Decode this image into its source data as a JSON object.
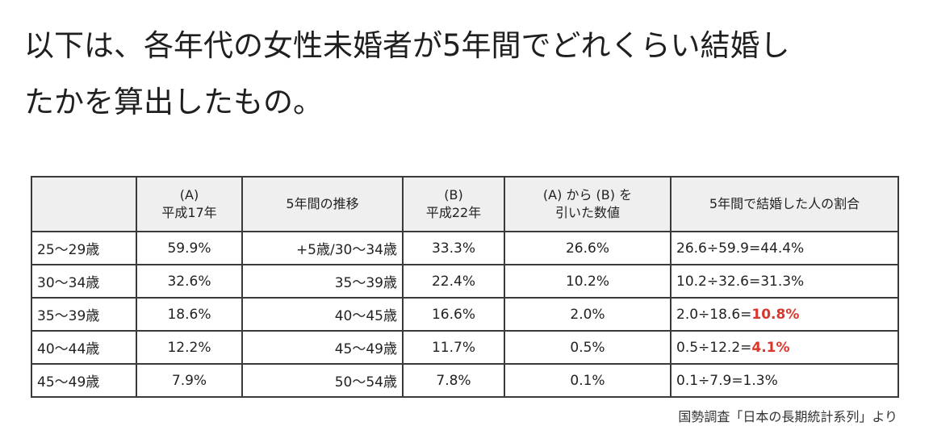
{
  "intro": {
    "line1": "以下は、各年代の女性未婚者が5年間でどれくらい結婚し",
    "line2": "たかを算出したもの。"
  },
  "table": {
    "headers": {
      "age": "",
      "a_line1": "(A)",
      "a_line2": "平成17年",
      "transition": "5年間の推移",
      "b_line1": "(B)",
      "b_line2": "平成22年",
      "diff_line1": "(A) から (B) を",
      "diff_line2": "引いた数値",
      "rate": "5年間で結婚した人の割合"
    },
    "rows": [
      {
        "age": "25〜29歳",
        "a": "59.9%",
        "transition": "+5歳/30〜34歳",
        "b": "33.3%",
        "diff": "26.6%",
        "rate_prefix": "26.6÷59.9=44.4%",
        "rate_highlight": ""
      },
      {
        "age": "30〜34歳",
        "a": "32.6%",
        "transition": "35〜39歳",
        "b": "22.4%",
        "diff": "10.2%",
        "rate_prefix": "10.2÷32.6=31.3%",
        "rate_highlight": ""
      },
      {
        "age": "35〜39歳",
        "a": "18.6%",
        "transition": "40〜45歳",
        "b": "16.6%",
        "diff": "2.0%",
        "rate_prefix": "2.0÷18.6=",
        "rate_highlight": "10.8%"
      },
      {
        "age": "40〜44歳",
        "a": "12.2%",
        "transition": "45〜49歳",
        "b": "11.7%",
        "diff": "0.5%",
        "rate_prefix": "0.5÷12.2=",
        "rate_highlight": "4.1%"
      },
      {
        "age": "45〜49歳",
        "a": "7.9%",
        "transition": "50〜54歳",
        "b": "7.8%",
        "diff": "0.1%",
        "rate_prefix": "0.1÷7.9=1.3%",
        "rate_highlight": ""
      }
    ]
  },
  "source": "国勢調査「日本の長期統計系列」より",
  "colors": {
    "highlight": "#d9362c",
    "header_bg": "#efefef",
    "border": "#3a3a3a"
  }
}
